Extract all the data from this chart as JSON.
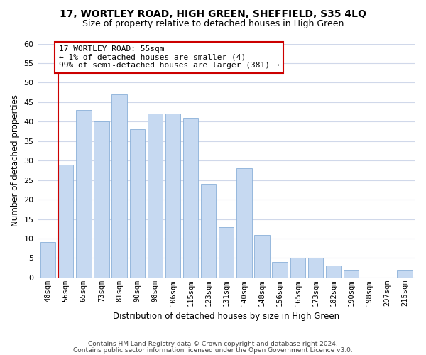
{
  "title_line1": "17, WORTLEY ROAD, HIGH GREEN, SHEFFIELD, S35 4LQ",
  "title_line2": "Size of property relative to detached houses in High Green",
  "xlabel": "Distribution of detached houses by size in High Green",
  "ylabel": "Number of detached properties",
  "bar_labels": [
    "48sqm",
    "56sqm",
    "65sqm",
    "73sqm",
    "81sqm",
    "90sqm",
    "98sqm",
    "106sqm",
    "115sqm",
    "123sqm",
    "131sqm",
    "140sqm",
    "148sqm",
    "156sqm",
    "165sqm",
    "173sqm",
    "182sqm",
    "190sqm",
    "198sqm",
    "207sqm",
    "215sqm"
  ],
  "bar_values": [
    9,
    29,
    43,
    40,
    47,
    38,
    42,
    42,
    41,
    24,
    13,
    28,
    11,
    4,
    5,
    5,
    3,
    2,
    0,
    0,
    2
  ],
  "bar_color": "#c6d9f1",
  "bar_edge_color": "#8ab0d8",
  "marker_line_color": "#cc0000",
  "annotation_title": "17 WORTLEY ROAD: 55sqm",
  "annotation_line1": "← 1% of detached houses are smaller (4)",
  "annotation_line2": "99% of semi-detached houses are larger (381) →",
  "annotation_box_color": "#ffffff",
  "annotation_box_edge": "#cc0000",
  "ylim": [
    0,
    60
  ],
  "yticks": [
    0,
    5,
    10,
    15,
    20,
    25,
    30,
    35,
    40,
    45,
    50,
    55,
    60
  ],
  "footer_line1": "Contains HM Land Registry data © Crown copyright and database right 2024.",
  "footer_line2": "Contains public sector information licensed under the Open Government Licence v3.0.",
  "bg_color": "#ffffff",
  "grid_color": "#d0d8ea"
}
